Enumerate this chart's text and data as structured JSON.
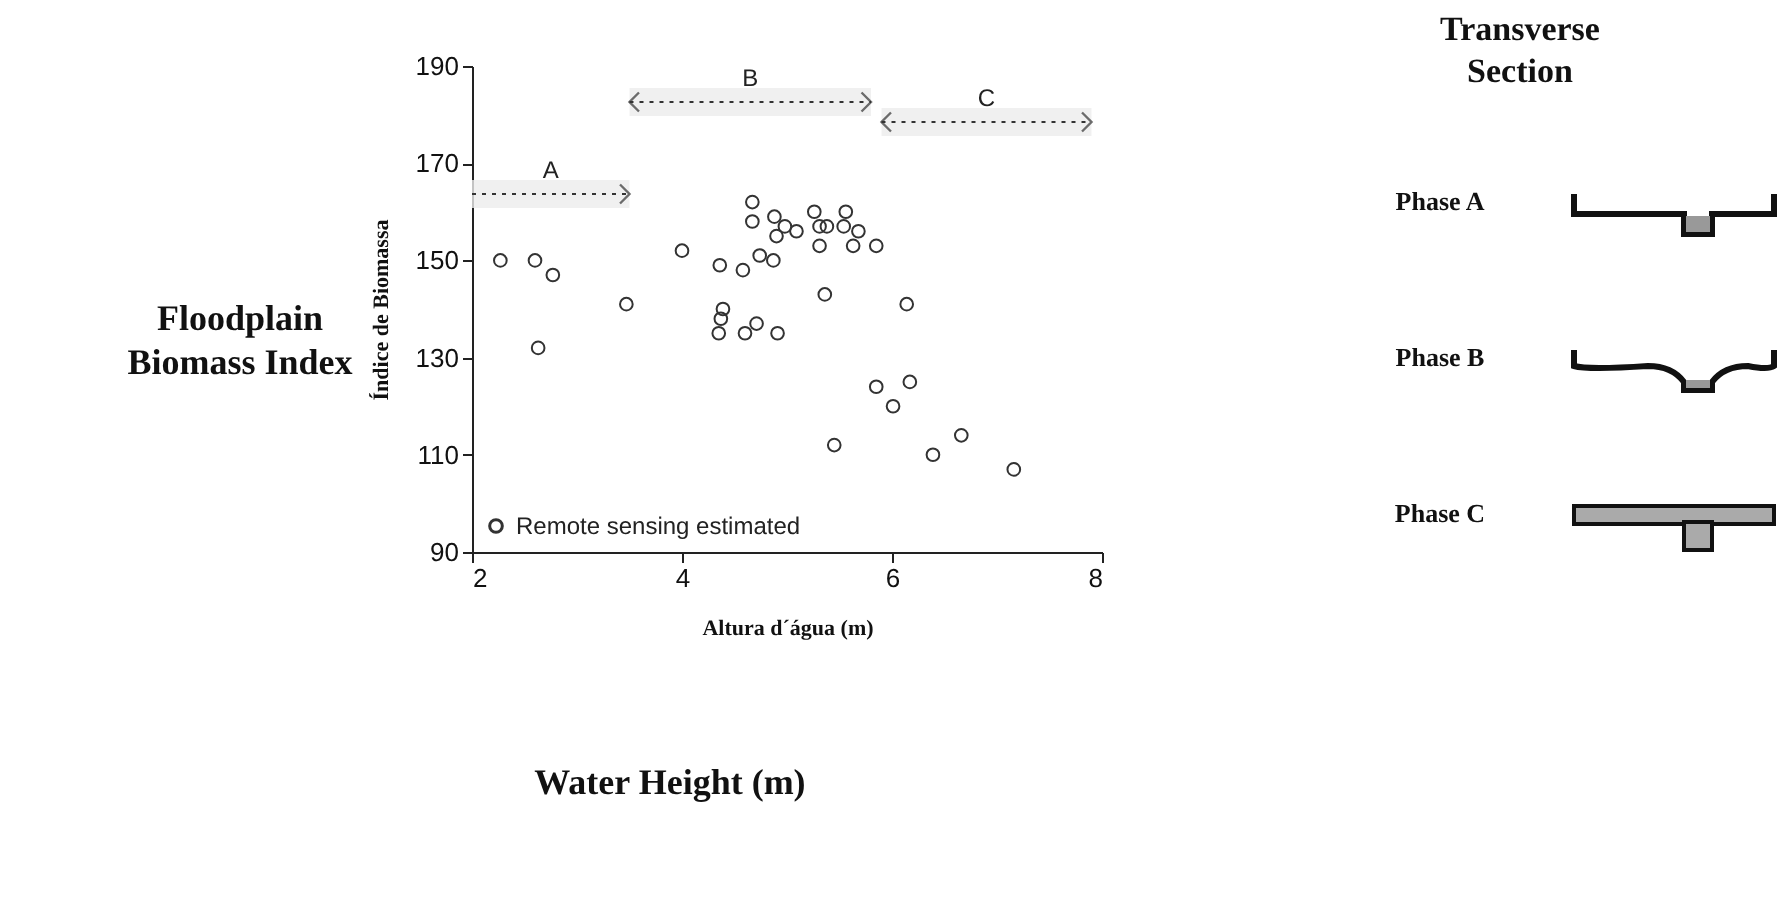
{
  "chart_data": [
    {
      "type": "scatter",
      "xlabel": "Altura d´água (m)",
      "ylabel": "Índice de Biomassa",
      "x": [
        2.27,
        2.6,
        2.77,
        2.63,
        3.47,
        4.0,
        4.36,
        4.39,
        4.37,
        4.35,
        4.58,
        4.67,
        4.67,
        4.74,
        4.6,
        4.71,
        4.88,
        4.87,
        4.91,
        4.9,
        4.98,
        5.09,
        5.26,
        5.31,
        5.38,
        5.31,
        5.36,
        5.56,
        5.54,
        5.68,
        5.63,
        5.85,
        6.14,
        5.85,
        6.17,
        6.01,
        5.45,
        6.39,
        6.66,
        7.16
      ],
      "series": [
        {
          "name": "Remote sensing estimated",
          "color": "#333333",
          "values": [
            150,
            150,
            147,
            132,
            141,
            152,
            149,
            140,
            138,
            135,
            148,
            162,
            158,
            151,
            135,
            137,
            159,
            150,
            135,
            155,
            157,
            156,
            160,
            157,
            157,
            153,
            143,
            160,
            157,
            156,
            153,
            153,
            141,
            124,
            125,
            120,
            112,
            110,
            114,
            107
          ]
        }
      ],
      "xlim": [
        2,
        8
      ],
      "xticks": [
        2,
        4,
        6,
        8
      ],
      "ylim": [
        90,
        190
      ],
      "yticks": [
        90,
        110,
        130,
        150,
        170,
        190
      ],
      "marker": "circle",
      "legend": "bottom left",
      "grid": false,
      "bands": [
        {
          "axis": "x",
          "from": 2,
          "to": 3.5,
          "label": "A"
        },
        {
          "axis": "x",
          "from": 3.5,
          "to": 5.8,
          "label": "B"
        },
        {
          "axis": "x",
          "from": 5.9,
          "to": 7.9,
          "label": "C"
        }
      ],
      "annotations": [
        "Floodplain Biomass Index",
        "Water Height (m)"
      ]
    },
    {
      "type": "other",
      "title": "Transverse Section",
      "annotations": [
        "Phase A",
        "Phase B",
        "Phase C"
      ]
    }
  ]
}
